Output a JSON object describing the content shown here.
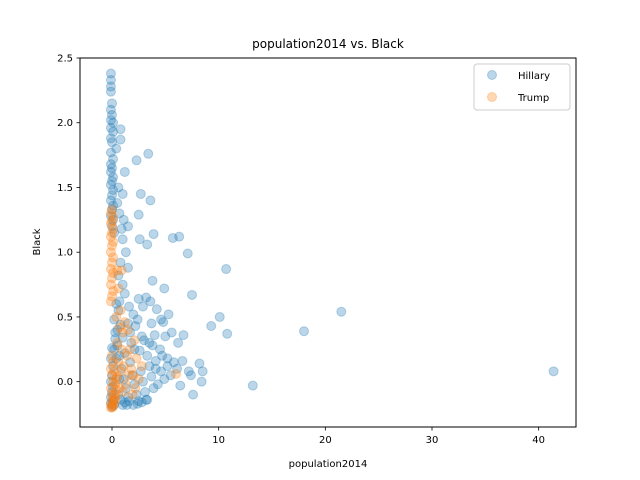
{
  "chart_data": {
    "type": "scatter",
    "title": "population2014 vs. Black",
    "xlabel": "population2014",
    "ylabel": "Black",
    "xlim": [
      -3.0,
      43.5
    ],
    "ylim": [
      -0.35,
      2.5
    ],
    "xticks": [
      0,
      10,
      20,
      30,
      40
    ],
    "yticks": [
      0.0,
      0.5,
      1.0,
      1.5,
      2.0,
      2.5
    ],
    "xtick_labels": [
      "0",
      "10",
      "20",
      "30",
      "40"
    ],
    "ytick_labels": [
      "0.0",
      "0.5",
      "1.0",
      "1.5",
      "2.0",
      "2.5"
    ],
    "grid": false,
    "legend_position": "top-right",
    "series": [
      {
        "name": "Hillary",
        "color": "#1f77b4",
        "points": [
          [
            -0.1,
            2.38
          ],
          [
            -0.1,
            2.33
          ],
          [
            -0.1,
            2.28
          ],
          [
            -0.1,
            2.24
          ],
          [
            0.0,
            2.15
          ],
          [
            -0.1,
            2.1
          ],
          [
            0.0,
            2.06
          ],
          [
            -0.1,
            2.02
          ],
          [
            0.1,
            2.0
          ],
          [
            -0.1,
            1.96
          ],
          [
            0.1,
            1.93
          ],
          [
            -0.1,
            1.88
          ],
          [
            0.0,
            1.85
          ],
          [
            -0.1,
            1.77
          ],
          [
            0.1,
            1.72
          ],
          [
            -0.1,
            1.68
          ],
          [
            0.0,
            1.65
          ],
          [
            -0.1,
            1.62
          ],
          [
            0.1,
            1.58
          ],
          [
            0.0,
            1.55
          ],
          [
            -0.1,
            1.52
          ],
          [
            0.1,
            1.48
          ],
          [
            0.0,
            1.44
          ],
          [
            -0.1,
            1.4
          ],
          [
            0.1,
            1.36
          ],
          [
            0.0,
            1.33
          ],
          [
            -0.1,
            1.28
          ],
          [
            0.1,
            1.25
          ],
          [
            0.0,
            1.2
          ],
          [
            0.2,
            1.15
          ],
          [
            0.8,
            1.95
          ],
          [
            0.8,
            1.87
          ],
          [
            0.4,
            1.8
          ],
          [
            1.2,
            1.62
          ],
          [
            0.6,
            1.5
          ],
          [
            1.0,
            1.45
          ],
          [
            0.5,
            1.38
          ],
          [
            0.7,
            1.3
          ],
          [
            1.1,
            1.25
          ],
          [
            0.9,
            1.18
          ],
          [
            1.5,
            1.2
          ],
          [
            1.0,
            1.1
          ],
          [
            1.3,
            1.0
          ],
          [
            0.8,
            0.92
          ],
          [
            1.5,
            0.88
          ],
          [
            0.6,
            0.82
          ],
          [
            1.0,
            0.75
          ],
          [
            1.2,
            0.68
          ],
          [
            0.7,
            0.62
          ],
          [
            1.6,
            0.58
          ],
          [
            2.3,
            1.71
          ],
          [
            3.4,
            1.76
          ],
          [
            2.7,
            1.45
          ],
          [
            3.6,
            1.4
          ],
          [
            2.5,
            1.29
          ],
          [
            2.6,
            1.1
          ],
          [
            3.3,
            1.06
          ],
          [
            3.9,
            1.14
          ],
          [
            5.7,
            1.11
          ],
          [
            6.3,
            1.12
          ],
          [
            7.1,
            0.99
          ],
          [
            10.7,
            0.87
          ],
          [
            3.8,
            0.78
          ],
          [
            4.9,
            0.72
          ],
          [
            7.5,
            0.67
          ],
          [
            3.2,
            0.65
          ],
          [
            2.5,
            0.64
          ],
          [
            3.6,
            0.62
          ],
          [
            2.9,
            0.58
          ],
          [
            4.2,
            0.56
          ],
          [
            5.3,
            0.52
          ],
          [
            4.6,
            0.48
          ],
          [
            10.1,
            0.5
          ],
          [
            9.3,
            0.43
          ],
          [
            10.8,
            0.37
          ],
          [
            18.0,
            0.39
          ],
          [
            21.5,
            0.54
          ],
          [
            2.0,
            0.52
          ],
          [
            2.4,
            0.48
          ],
          [
            3.7,
            0.45
          ],
          [
            4.8,
            0.46
          ],
          [
            1.5,
            0.45
          ],
          [
            2.2,
            0.43
          ],
          [
            1.7,
            0.38
          ],
          [
            2.8,
            0.35
          ],
          [
            3.0,
            0.32
          ],
          [
            3.5,
            0.3
          ],
          [
            4.0,
            0.36
          ],
          [
            4.5,
            0.25
          ],
          [
            5.0,
            0.35
          ],
          [
            5.6,
            0.38
          ],
          [
            6.2,
            0.3
          ],
          [
            6.7,
            0.36
          ],
          [
            5.2,
            0.18
          ],
          [
            4.7,
            0.2
          ],
          [
            4.1,
            0.16
          ],
          [
            3.8,
            0.28
          ],
          [
            2.6,
            0.24
          ],
          [
            3.3,
            0.2
          ],
          [
            2.1,
            0.25
          ],
          [
            1.8,
            0.3
          ],
          [
            0.0,
            0.26
          ],
          [
            0.2,
            0.25
          ],
          [
            -0.1,
            0.18
          ],
          [
            0.1,
            0.12
          ],
          [
            0.0,
            0.05
          ],
          [
            -0.1,
            0.0
          ],
          [
            0.1,
            -0.04
          ],
          [
            0.0,
            -0.08
          ],
          [
            -0.1,
            -0.12
          ],
          [
            0.1,
            -0.15
          ],
          [
            0.2,
            -0.18
          ],
          [
            0.0,
            -0.19
          ],
          [
            -0.1,
            -0.17
          ],
          [
            0.3,
            0.33
          ],
          [
            0.5,
            0.4
          ],
          [
            0.7,
            0.2
          ],
          [
            0.9,
            0.1
          ],
          [
            1.1,
            0.02
          ],
          [
            1.3,
            -0.05
          ],
          [
            1.5,
            -0.12
          ],
          [
            1.7,
            0.15
          ],
          [
            1.9,
            0.05
          ],
          [
            2.1,
            -0.02
          ],
          [
            2.3,
            -0.1
          ],
          [
            2.5,
            -0.15
          ],
          [
            2.7,
            0.08
          ],
          [
            2.9,
            0.0
          ],
          [
            3.1,
            -0.08
          ],
          [
            3.3,
            -0.14
          ],
          [
            3.5,
            0.12
          ],
          [
            3.7,
            0.04
          ],
          [
            3.9,
            -0.05
          ],
          [
            4.1,
            0.1
          ],
          [
            4.3,
            -0.02
          ],
          [
            4.6,
            0.08
          ],
          [
            4.9,
            0.02
          ],
          [
            5.2,
            0.12
          ],
          [
            5.5,
            0.05
          ],
          [
            5.8,
            0.15
          ],
          [
            6.1,
            0.1
          ],
          [
            6.4,
            -0.03
          ],
          [
            6.6,
            0.16
          ],
          [
            7.2,
            0.08
          ],
          [
            7.4,
            0.05
          ],
          [
            7.6,
            -0.1
          ],
          [
            8.2,
            0.14
          ],
          [
            8.5,
            0.08
          ],
          [
            8.4,
            0.0
          ],
          [
            13.2,
            -0.03
          ],
          [
            41.4,
            0.08
          ],
          [
            0.6,
            -0.1
          ],
          [
            0.8,
            -0.14
          ],
          [
            1.0,
            -0.18
          ],
          [
            1.2,
            -0.16
          ],
          [
            1.4,
            -0.18
          ],
          [
            1.6,
            -0.15
          ],
          [
            2.0,
            -0.18
          ],
          [
            2.4,
            -0.17
          ],
          [
            2.8,
            -0.16
          ],
          [
            3.2,
            -0.14
          ],
          [
            0.4,
            0.6
          ],
          [
            0.6,
            0.55
          ],
          [
            0.2,
            0.48
          ],
          [
            0.8,
            0.44
          ],
          [
            0.3,
            0.38
          ],
          [
            1.0,
            0.34
          ],
          [
            0.5,
            0.28
          ],
          [
            1.2,
            0.22
          ],
          [
            0.4,
            0.18
          ],
          [
            0.7,
            0.02
          ]
        ]
      },
      {
        "name": "Trump",
        "color": "#ff7f0e",
        "points": [
          [
            0.0,
            1.33
          ],
          [
            -0.1,
            1.3
          ],
          [
            0.1,
            1.27
          ],
          [
            0.0,
            1.24
          ],
          [
            -0.1,
            1.22
          ],
          [
            0.1,
            1.18
          ],
          [
            0.0,
            1.15
          ],
          [
            -0.1,
            1.12
          ],
          [
            0.1,
            1.08
          ],
          [
            0.0,
            1.05
          ],
          [
            -0.1,
            1.0
          ],
          [
            0.1,
            0.96
          ],
          [
            0.0,
            0.92
          ],
          [
            -0.1,
            0.87
          ],
          [
            0.1,
            0.84
          ],
          [
            0.0,
            0.8
          ],
          [
            -0.1,
            0.75
          ],
          [
            0.1,
            0.7
          ],
          [
            0.0,
            0.66
          ],
          [
            -0.1,
            0.62
          ],
          [
            0.5,
            0.86
          ],
          [
            0.9,
            0.86
          ],
          [
            0.6,
            0.72
          ],
          [
            0.8,
            0.55
          ],
          [
            0.4,
            0.5
          ],
          [
            0.7,
            0.42
          ],
          [
            1.2,
            0.46
          ],
          [
            1.0,
            0.38
          ],
          [
            0.5,
            0.3
          ],
          [
            0.9,
            0.25
          ],
          [
            1.4,
            0.2
          ],
          [
            0.6,
            0.15
          ],
          [
            1.1,
            0.12
          ],
          [
            0.8,
            0.08
          ],
          [
            1.6,
            0.05
          ],
          [
            0.4,
            0.02
          ],
          [
            1.3,
            -0.02
          ],
          [
            0.7,
            -0.05
          ],
          [
            1.0,
            -0.08
          ],
          [
            0.3,
            -0.12
          ],
          [
            0.0,
            0.2
          ],
          [
            0.1,
            0.15
          ],
          [
            -0.1,
            0.1
          ],
          [
            0.0,
            0.05
          ],
          [
            0.1,
            0.0
          ],
          [
            -0.1,
            -0.05
          ],
          [
            0.0,
            -0.1
          ],
          [
            0.1,
            -0.13
          ],
          [
            -0.1,
            -0.16
          ],
          [
            0.0,
            -0.18
          ],
          [
            0.1,
            -0.19
          ],
          [
            -0.1,
            -0.2
          ],
          [
            0.0,
            -0.2
          ],
          [
            0.2,
            -0.17
          ],
          [
            0.3,
            -0.14
          ],
          [
            0.2,
            -0.1
          ],
          [
            0.4,
            -0.06
          ],
          [
            0.3,
            -0.02
          ],
          [
            0.5,
            0.04
          ],
          [
            0.2,
            0.08
          ],
          [
            1.8,
            0.1
          ],
          [
            2.0,
            0.05
          ],
          [
            2.2,
            -0.05
          ],
          [
            2.5,
            0.02
          ],
          [
            1.9,
            -0.1
          ],
          [
            2.8,
            0.12
          ],
          [
            2.3,
            0.18
          ],
          [
            1.7,
            0.25
          ],
          [
            2.1,
            0.32
          ],
          [
            1.5,
            0.4
          ],
          [
            6.0,
            0.06
          ]
        ]
      }
    ]
  }
}
